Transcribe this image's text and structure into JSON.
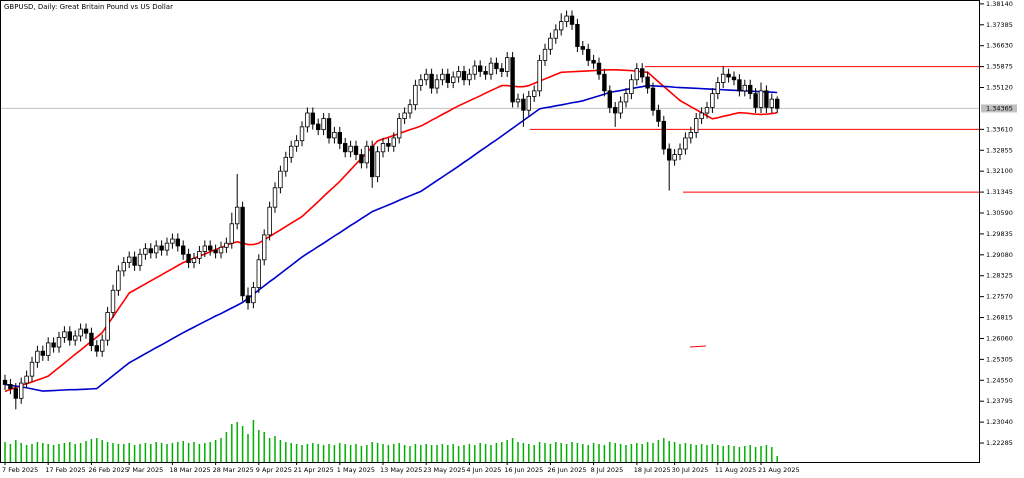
{
  "chart_data": {
    "type": "candlestick",
    "title": "GBPUSD, Daily: Great Britain Pound vs US Dollar",
    "categories": [
      "7 Feb 2025",
      null,
      null,
      null,
      null,
      null,
      null,
      null,
      "17 Feb 2025",
      null,
      null,
      null,
      null,
      null,
      null,
      null,
      "26 Feb 2025",
      null,
      null,
      null,
      null,
      null,
      null,
      "7 Mar 2025",
      null,
      null,
      null,
      null,
      null,
      null,
      null,
      "18 Mar 2025",
      null,
      null,
      null,
      null,
      null,
      null,
      null,
      "28 Mar 2025",
      null,
      null,
      null,
      null,
      null,
      null,
      null,
      "9 Apr 2025",
      null,
      null,
      null,
      null,
      null,
      null,
      "21 Apr 2025",
      null,
      null,
      null,
      null,
      null,
      null,
      null,
      "1 May 2025",
      null,
      null,
      null,
      null,
      null,
      null,
      null,
      "13 May 2025",
      null,
      null,
      null,
      null,
      null,
      null,
      null,
      "23 May 2025",
      null,
      null,
      null,
      null,
      null,
      null,
      null,
      "4 Jun 2025",
      null,
      null,
      null,
      null,
      null,
      null,
      "16 Jun 2025",
      null,
      null,
      null,
      null,
      null,
      null,
      null,
      "26 Jun 2025",
      null,
      null,
      null,
      null,
      null,
      null,
      null,
      "8 Jul 2025",
      null,
      null,
      null,
      null,
      null,
      null,
      null,
      "18 Jul 2025",
      null,
      null,
      null,
      null,
      null,
      null,
      "30 Jul 2025",
      null,
      null,
      null,
      null,
      null,
      null,
      null,
      "11 Aug 2025",
      null,
      null,
      null,
      null,
      null,
      null,
      null,
      "21 Aug 2025",
      null,
      null,
      null
    ],
    "open": [
      1.2455,
      1.244,
      1.2425,
      1.239,
      1.2445,
      1.247,
      1.252,
      1.256,
      1.2545,
      1.259,
      1.2575,
      1.261,
      1.263,
      1.26,
      1.2615,
      1.264,
      1.2625,
      1.258,
      1.256,
      1.26,
      1.27,
      1.278,
      1.285,
      1.288,
      1.29,
      1.287,
      1.291,
      1.293,
      1.2915,
      1.294,
      1.2925,
      1.295,
      1.2965,
      1.294,
      1.291,
      1.288,
      1.2895,
      1.292,
      1.294,
      1.2925,
      1.2915,
      1.2935,
      1.295,
      1.302,
      1.308,
      1.276,
      1.2735,
      1.279,
      1.289,
      1.298,
      1.308,
      1.315,
      1.321,
      1.326,
      1.33,
      1.332,
      1.337,
      1.342,
      1.338,
      1.336,
      1.34,
      1.333,
      1.335,
      1.331,
      1.328,
      1.33,
      1.327,
      1.324,
      1.33,
      1.319,
      1.328,
      1.331,
      1.33,
      1.333,
      1.34,
      1.342,
      1.345,
      1.352,
      1.354,
      1.356,
      1.351,
      1.354,
      1.356,
      1.353,
      1.355,
      1.357,
      1.354,
      1.356,
      1.359,
      1.357,
      1.356,
      1.36,
      1.358,
      1.357,
      1.362,
      1.346,
      1.347,
      1.343,
      1.348,
      1.35,
      1.361,
      1.365,
      1.369,
      1.372,
      1.375,
      1.377,
      1.374,
      1.366,
      1.365,
      1.361,
      1.36,
      1.356,
      1.35,
      1.344,
      1.342,
      1.346,
      1.349,
      1.354,
      1.358,
      1.355,
      1.351,
      1.343,
      1.339,
      1.329,
      1.325,
      1.327,
      1.329,
      1.333,
      1.335,
      1.34,
      1.342,
      1.344,
      1.349,
      1.353,
      1.356,
      1.355,
      1.354,
      1.35,
      1.352,
      1.349,
      1.344,
      1.35,
      1.344,
      1.347
    ],
    "high": [
      1.2475,
      1.246,
      1.2445,
      1.2465,
      1.249,
      1.254,
      1.258,
      1.258,
      1.261,
      1.261,
      1.263,
      1.265,
      1.265,
      1.2635,
      1.266,
      1.266,
      1.2645,
      1.26,
      1.262,
      1.272,
      1.28,
      1.287,
      1.29,
      1.292,
      1.292,
      1.293,
      1.295,
      1.295,
      1.296,
      1.296,
      1.297,
      1.2985,
      1.2985,
      1.296,
      1.293,
      1.2915,
      1.294,
      1.296,
      1.296,
      1.2945,
      1.2955,
      1.297,
      1.306,
      1.32,
      1.31,
      1.279,
      1.281,
      1.291,
      1.3,
      1.31,
      1.317,
      1.323,
      1.328,
      1.332,
      1.334,
      1.339,
      1.344,
      1.344,
      1.34,
      1.342,
      1.342,
      1.337,
      1.337,
      1.333,
      1.332,
      1.332,
      1.329,
      1.332,
      1.332,
      1.33,
      1.333,
      1.333,
      1.335,
      1.342,
      1.344,
      1.347,
      1.354,
      1.356,
      1.358,
      1.358,
      1.356,
      1.358,
      1.358,
      1.357,
      1.359,
      1.359,
      1.358,
      1.361,
      1.361,
      1.359,
      1.362,
      1.362,
      1.36,
      1.364,
      1.364,
      1.349,
      1.349,
      1.35,
      1.352,
      1.363,
      1.367,
      1.371,
      1.374,
      1.378,
      1.379,
      1.379,
      1.376,
      1.368,
      1.367,
      1.363,
      1.362,
      1.358,
      1.352,
      1.346,
      1.348,
      1.351,
      1.356,
      1.36,
      1.36,
      1.357,
      1.353,
      1.345,
      1.341,
      1.331,
      1.329,
      1.331,
      1.335,
      1.337,
      1.342,
      1.344,
      1.346,
      1.351,
      1.355,
      1.359,
      1.358,
      1.357,
      1.356,
      1.354,
      1.354,
      1.351,
      1.353,
      1.352,
      1.349,
      1.348
    ],
    "low": [
      1.242,
      1.2405,
      1.235,
      1.237,
      1.2425,
      1.245,
      1.25,
      1.2525,
      1.2525,
      1.2555,
      1.2555,
      1.259,
      1.258,
      1.258,
      1.2595,
      1.2605,
      1.256,
      1.254,
      1.254,
      1.258,
      1.268,
      1.276,
      1.283,
      1.286,
      1.285,
      1.285,
      1.289,
      1.2895,
      1.2895,
      1.2905,
      1.2905,
      1.293,
      1.292,
      1.289,
      1.286,
      1.286,
      1.2875,
      1.29,
      1.2905,
      1.2895,
      1.2895,
      1.2915,
      1.293,
      1.3,
      1.274,
      1.271,
      1.2715,
      1.277,
      1.287,
      1.296,
      1.306,
      1.313,
      1.319,
      1.324,
      1.328,
      1.33,
      1.335,
      1.336,
      1.334,
      1.334,
      1.331,
      1.331,
      1.329,
      1.326,
      1.326,
      1.325,
      1.322,
      1.322,
      1.315,
      1.317,
      1.326,
      1.328,
      1.328,
      1.331,
      1.338,
      1.34,
      1.343,
      1.35,
      1.352,
      1.349,
      1.349,
      1.352,
      1.351,
      1.351,
      1.353,
      1.352,
      1.352,
      1.354,
      1.355,
      1.354,
      1.354,
      1.356,
      1.355,
      1.355,
      1.344,
      1.344,
      1.337,
      1.341,
      1.346,
      1.348,
      1.359,
      1.363,
      1.367,
      1.37,
      1.373,
      1.372,
      1.364,
      1.363,
      1.359,
      1.358,
      1.354,
      1.348,
      1.342,
      1.337,
      1.34,
      1.344,
      1.347,
      1.352,
      1.353,
      1.349,
      1.341,
      1.337,
      1.327,
      1.314,
      1.323,
      1.325,
      1.327,
      1.331,
      1.333,
      1.338,
      1.34,
      1.342,
      1.347,
      1.351,
      1.353,
      1.352,
      1.348,
      1.348,
      1.347,
      1.342,
      1.342,
      1.342,
      1.342,
      1.342
    ],
    "close": [
      1.244,
      1.2425,
      1.239,
      1.2445,
      1.247,
      1.252,
      1.256,
      1.2545,
      1.259,
      1.2575,
      1.261,
      1.263,
      1.26,
      1.2615,
      1.264,
      1.2625,
      1.258,
      1.256,
      1.26,
      1.27,
      1.278,
      1.285,
      1.288,
      1.29,
      1.287,
      1.291,
      1.293,
      1.2915,
      1.294,
      1.2925,
      1.295,
      1.2965,
      1.294,
      1.291,
      1.288,
      1.2895,
      1.292,
      1.294,
      1.2925,
      1.2915,
      1.2935,
      1.295,
      1.302,
      1.308,
      1.276,
      1.2735,
      1.279,
      1.289,
      1.298,
      1.308,
      1.315,
      1.321,
      1.326,
      1.33,
      1.332,
      1.337,
      1.342,
      1.338,
      1.336,
      1.34,
      1.333,
      1.335,
      1.331,
      1.328,
      1.33,
      1.327,
      1.324,
      1.33,
      1.319,
      1.328,
      1.331,
      1.33,
      1.333,
      1.34,
      1.342,
      1.345,
      1.352,
      1.354,
      1.356,
      1.351,
      1.354,
      1.356,
      1.353,
      1.355,
      1.357,
      1.354,
      1.356,
      1.359,
      1.357,
      1.356,
      1.36,
      1.358,
      1.357,
      1.362,
      1.346,
      1.347,
      1.343,
      1.348,
      1.35,
      1.361,
      1.365,
      1.369,
      1.372,
      1.375,
      1.377,
      1.374,
      1.366,
      1.365,
      1.361,
      1.36,
      1.356,
      1.35,
      1.344,
      1.342,
      1.346,
      1.349,
      1.354,
      1.358,
      1.355,
      1.351,
      1.343,
      1.339,
      1.329,
      1.325,
      1.327,
      1.329,
      1.333,
      1.335,
      1.34,
      1.342,
      1.344,
      1.349,
      1.353,
      1.356,
      1.355,
      1.354,
      1.35,
      1.352,
      1.349,
      1.344,
      1.35,
      1.344,
      1.347,
      1.3437
    ],
    "moving_averages": [
      {
        "color": "#ff0000",
        "values": [
          1.2415,
          1.2422,
          1.2429,
          1.2436,
          1.2443,
          1.2449,
          1.2456,
          1.2463,
          1.247,
          1.2486,
          1.2501,
          1.2517,
          1.2533,
          1.2549,
          1.2564,
          1.258,
          1.2596,
          1.2611,
          1.2627,
          1.2656,
          1.2684,
          1.2713,
          1.2741,
          1.277,
          1.2781,
          1.2792,
          1.2803,
          1.2814,
          1.2825,
          1.2836,
          1.2847,
          1.2858,
          1.2869,
          1.288,
          1.2888,
          1.2896,
          1.2903,
          1.2911,
          1.2919,
          1.2927,
          1.2934,
          1.2942,
          1.295,
          1.2955,
          1.295,
          1.2945,
          1.2945,
          1.295,
          1.2962,
          1.2974,
          1.2986,
          1.2998,
          1.301,
          1.3022,
          1.3034,
          1.3046,
          1.3064,
          1.3082,
          1.31,
          1.3119,
          1.3137,
          1.3155,
          1.3173,
          1.3194,
          1.3215,
          1.3236,
          1.3256,
          1.3277,
          1.3298,
          1.3319,
          1.3326,
          1.3332,
          1.3339,
          1.3346,
          1.3353,
          1.336,
          1.3366,
          1.3373,
          1.3383,
          1.3394,
          1.3404,
          1.3415,
          1.3425,
          1.3436,
          1.3446,
          1.3455,
          1.3464,
          1.3473,
          1.3482,
          1.3492,
          1.3501,
          1.351,
          1.3519,
          1.3519,
          1.3517,
          1.3515,
          1.3515,
          1.3519,
          1.3527,
          1.3535,
          1.3543,
          1.3551,
          1.3559,
          1.3567,
          1.3568,
          1.3569,
          1.357,
          1.3571,
          1.3572,
          1.3573,
          1.3574,
          1.3575,
          1.3576,
          1.3576,
          1.3575,
          1.3574,
          1.3573,
          1.3571,
          1.3569,
          1.3567,
          1.355,
          1.3533,
          1.3516,
          1.3499,
          1.3482,
          1.3465,
          1.3454,
          1.3443,
          1.3432,
          1.3421,
          1.341,
          1.3399,
          1.3403,
          1.3408,
          1.3412,
          1.3417,
          1.3421,
          1.342,
          1.3418,
          1.3416,
          1.3415,
          1.3416,
          1.3418,
          1.3421
        ]
      },
      {
        "color": "#0000cc",
        "values": [
          1.244,
          1.2437,
          1.2434,
          1.2431,
          1.2428,
          1.2424,
          1.242,
          1.2416,
          1.2417,
          1.2418,
          1.2419,
          1.242,
          1.2421,
          1.2421,
          1.2422,
          1.2423,
          1.2424,
          1.2425,
          1.2441,
          1.2456,
          1.2472,
          1.2487,
          1.2503,
          1.2518,
          1.2529,
          1.254,
          1.2551,
          1.2562,
          1.2573,
          1.2583,
          1.2594,
          1.2605,
          1.2616,
          1.2627,
          1.2637,
          1.2647,
          1.2657,
          1.2667,
          1.2677,
          1.2687,
          1.2696,
          1.2706,
          1.2716,
          1.2726,
          1.2736,
          1.2751,
          1.2766,
          1.2781,
          1.2796,
          1.2811,
          1.2825,
          1.284,
          1.2855,
          1.287,
          1.2885,
          1.29,
          1.2913,
          1.2925,
          1.2938,
          1.295,
          1.2963,
          1.2976,
          1.2988,
          1.3001,
          1.3014,
          1.3026,
          1.3039,
          1.3051,
          1.3064,
          1.3072,
          1.308,
          1.3088,
          1.3096,
          1.3105,
          1.3113,
          1.3121,
          1.3129,
          1.3137,
          1.315,
          1.3163,
          1.3176,
          1.3189,
          1.3202,
          1.3215,
          1.3228,
          1.3242,
          1.3255,
          1.3269,
          1.3283,
          1.3296,
          1.331,
          1.3323,
          1.3337,
          1.3351,
          1.3365,
          1.3379,
          1.3393,
          1.3407,
          1.3421,
          1.3435,
          1.3439,
          1.3442,
          1.3446,
          1.3449,
          1.3453,
          1.3457,
          1.346,
          1.3464,
          1.347,
          1.3476,
          1.3482,
          1.3488,
          1.3494,
          1.3498,
          1.3501,
          1.3505,
          1.3508,
          1.3512,
          1.3515,
          1.3519,
          1.3518,
          1.3517,
          1.3516,
          1.3515,
          1.3513,
          1.3512,
          1.3511,
          1.351,
          1.3509,
          1.3508,
          1.3507,
          1.3506,
          1.3505,
          1.3504,
          1.3503,
          1.3502,
          1.3501,
          1.35,
          1.3499,
          1.3498,
          1.3497,
          1.3496,
          1.3495,
          1.3494
        ]
      }
    ],
    "volume": {
      "color": "#00b000",
      "values": [
        20,
        18,
        22,
        19,
        17,
        18,
        20,
        19,
        18,
        17,
        18,
        19,
        20,
        18,
        19,
        21,
        23,
        24,
        22,
        20,
        19,
        18,
        18,
        19,
        17,
        18,
        19,
        18,
        20,
        19,
        18,
        19,
        20,
        21,
        19,
        20,
        18,
        19,
        20,
        22,
        24,
        30,
        38,
        40,
        36,
        28,
        42,
        32,
        30,
        24,
        26,
        22,
        20,
        19,
        18,
        17,
        18,
        19,
        18,
        17,
        18,
        17,
        19,
        18,
        17,
        18,
        16,
        17,
        20,
        19,
        18,
        17,
        18,
        19,
        17,
        16,
        18,
        17,
        18,
        17,
        17,
        18,
        17,
        18,
        16,
        17,
        18,
        17,
        19,
        18,
        17,
        19,
        20,
        22,
        24,
        20,
        19,
        18,
        17,
        20,
        19,
        18,
        20,
        19,
        18,
        20,
        19,
        18,
        17,
        19,
        18,
        17,
        20,
        19,
        18,
        17,
        18,
        19,
        18,
        20,
        19,
        22,
        24,
        21,
        20,
        18,
        19,
        18,
        17,
        18,
        17,
        18,
        17,
        16,
        17,
        16,
        15,
        16,
        17,
        15,
        16,
        17,
        15,
        6
      ]
    },
    "levels": [
      {
        "value": 1.35875,
        "color": "#ff0000"
      },
      {
        "value": 1.3361,
        "color": "#ff0000"
      },
      {
        "value": 1.31345,
        "color": "#ff0000"
      }
    ],
    "current_price": 1.34365,
    "ylim": [
      1.216,
      1.3828
    ],
    "yticks": [
      {
        "value": 1.3814,
        "label": "1.38140"
      },
      {
        "value": 1.37385,
        "label": "1.37385"
      },
      {
        "value": 1.3663,
        "label": "1.36630"
      },
      {
        "value": 1.35875,
        "label": "1.35875"
      },
      {
        "value": 1.3512,
        "label": "1.35120"
      },
      {
        "value": 1.3361,
        "label": "1.33610"
      },
      {
        "value": 1.32855,
        "label": "1.32855"
      },
      {
        "value": 1.321,
        "label": "1.32100"
      },
      {
        "value": 1.31345,
        "label": "1.31345"
      },
      {
        "value": 1.3059,
        "label": "1.30590"
      },
      {
        "value": 1.29835,
        "label": "1.29835"
      },
      {
        "value": 1.2908,
        "label": "1.29080"
      },
      {
        "value": 1.28325,
        "label": "1.28325"
      },
      {
        "value": 1.2757,
        "label": "1.27570"
      },
      {
        "value": 1.26815,
        "label": "1.26815"
      },
      {
        "value": 1.2606,
        "label": "1.26060"
      },
      {
        "value": 1.25305,
        "label": "1.25305"
      },
      {
        "value": 1.2455,
        "label": "1.24550"
      },
      {
        "value": 1.23795,
        "label": "1.23795"
      },
      {
        "value": 1.2304,
        "label": "1.23040"
      },
      {
        "value": 1.22285,
        "label": "1.22285"
      }
    ],
    "grid": false,
    "up_color": "#ffffff",
    "down_color": "#000000"
  }
}
